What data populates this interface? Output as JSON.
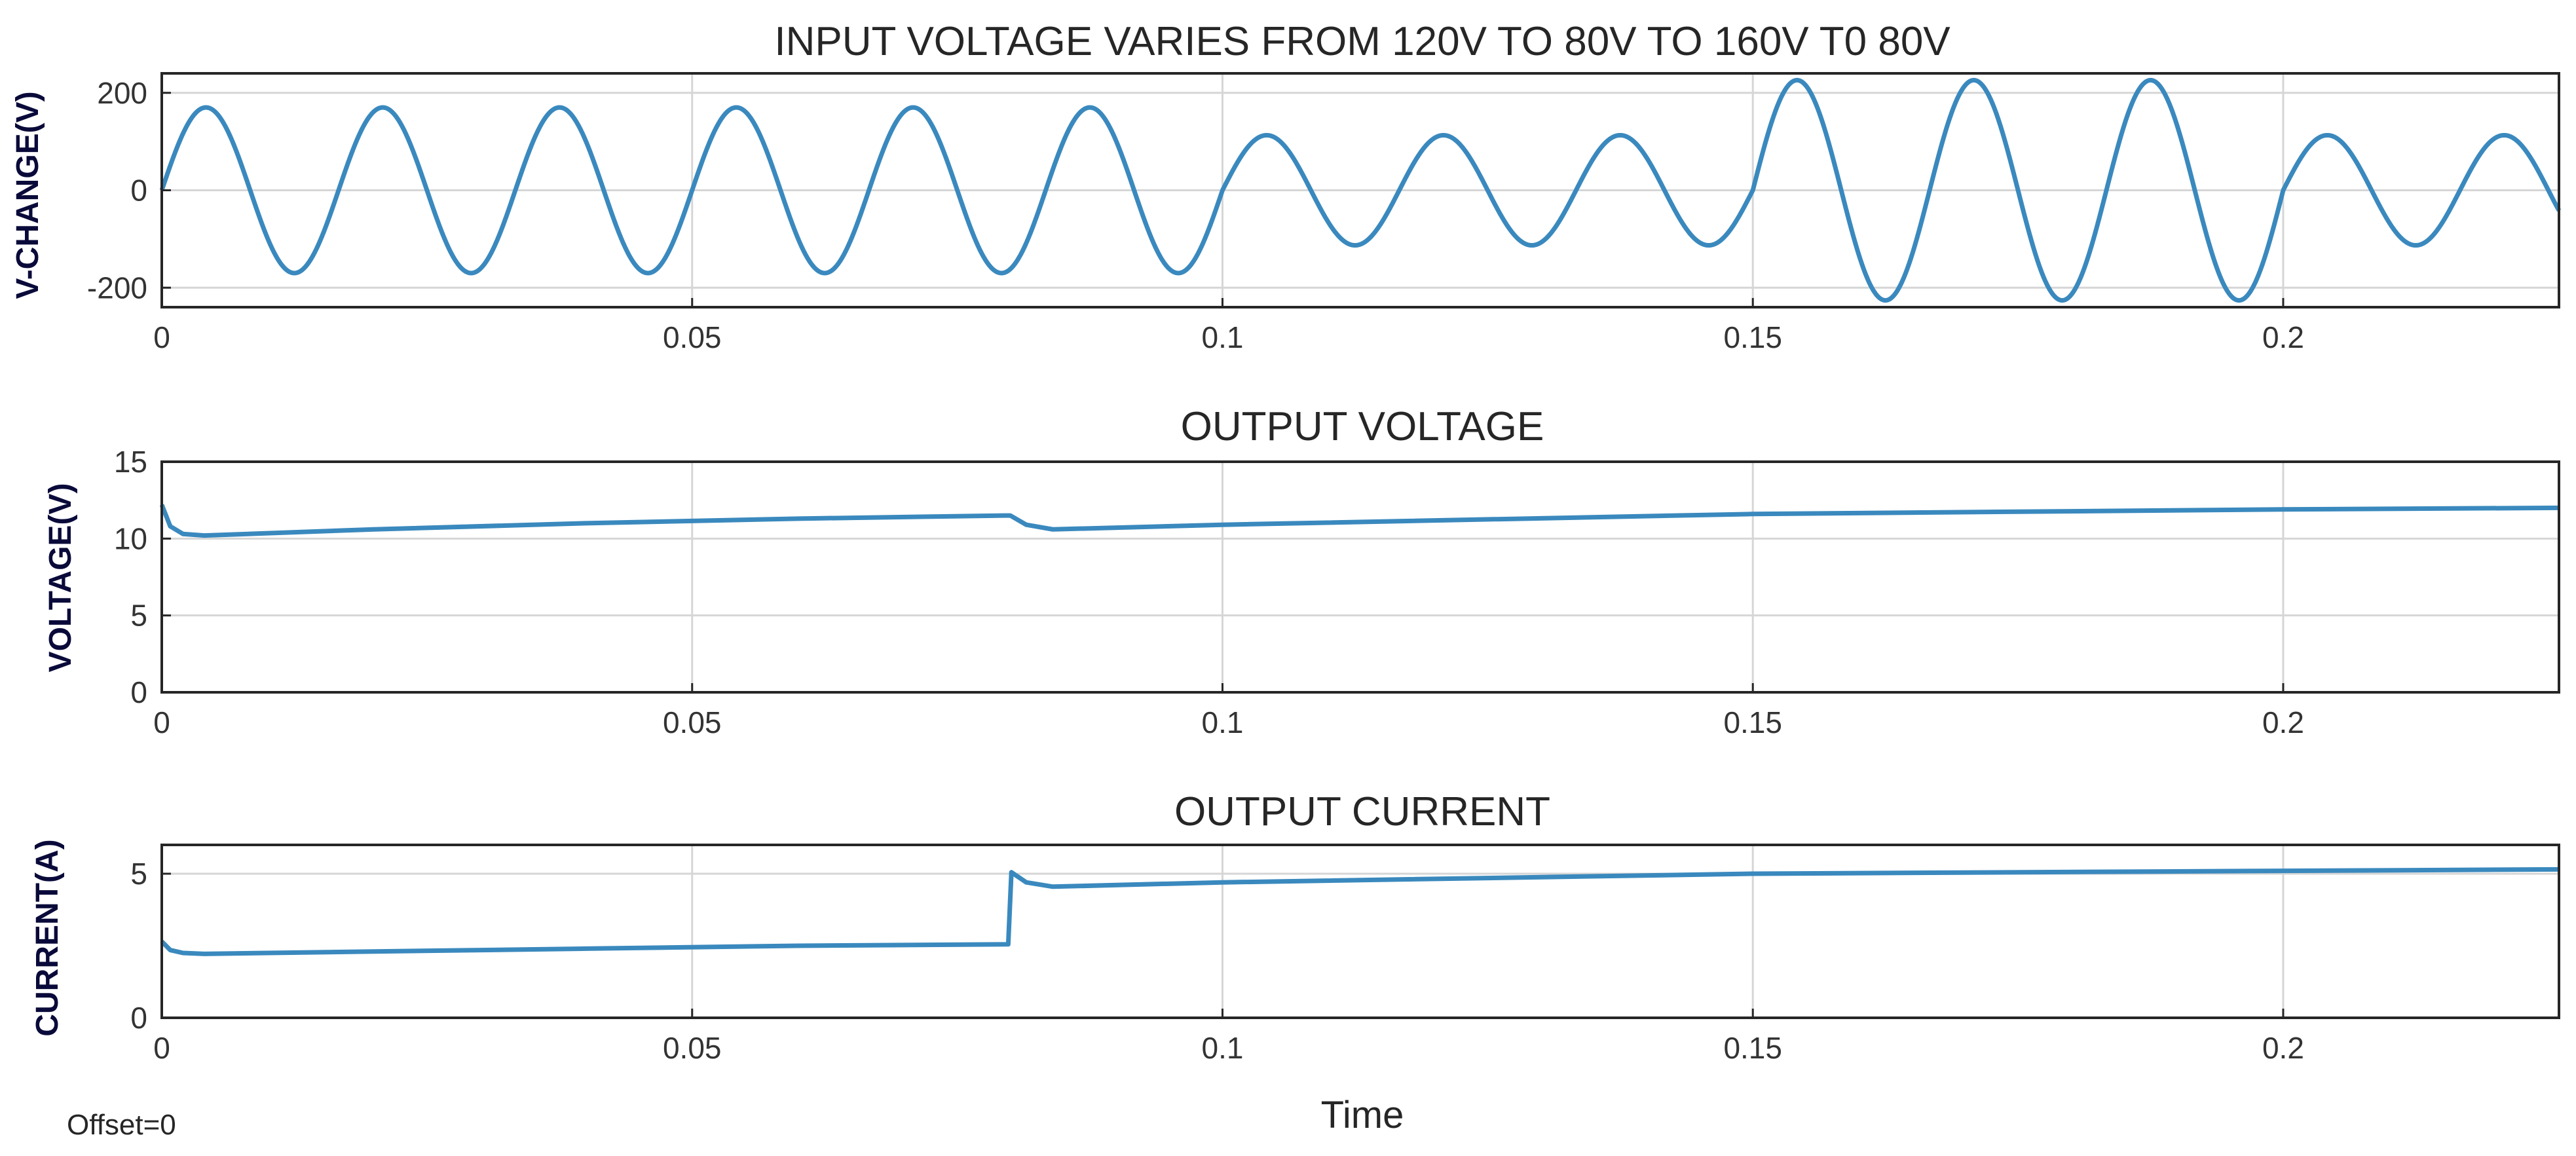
{
  "figure": {
    "xlabel": "Time",
    "offset_label": "Offset=0",
    "colors": {
      "line": "#3a89be",
      "axes": "#262626",
      "grid": "#d6d6d6",
      "background": "#ffffff"
    }
  },
  "chart_data": [
    {
      "type": "line",
      "title": "INPUT VOLTAGE VARIES FROM 120V TO 80V TO 160V T0 80V",
      "ylabel": "V-CHANGE(V)",
      "xlim": [
        0,
        0.226
      ],
      "ylim": [
        -240,
        240
      ],
      "xticks": [
        0,
        0.05,
        0.1,
        0.15,
        0.2
      ],
      "xtick_labels": [
        "0",
        "0.05",
        "0.1",
        "0.15",
        "0.2"
      ],
      "yticks": [
        -200,
        0,
        200
      ],
      "ytick_labels": [
        "-200",
        "0",
        "200"
      ],
      "grid": true,
      "series": [
        {
          "kind": "piecewise-sinusoid",
          "frequency_hz": 60,
          "segments": [
            {
              "t_start": 0,
              "t_end": 0.1,
              "amplitude": 170
            },
            {
              "t_start": 0.1,
              "t_end": 0.15,
              "amplitude": 113
            },
            {
              "t_start": 0.15,
              "t_end": 0.2,
              "amplitude": 226
            },
            {
              "t_start": 0.2,
              "t_end": 0.226,
              "amplitude": 113
            }
          ]
        }
      ]
    },
    {
      "type": "line",
      "title": "OUTPUT VOLTAGE",
      "ylabel": "VOLTAGE(V)",
      "xlim": [
        0,
        0.226
      ],
      "ylim": [
        0,
        15
      ],
      "xticks": [
        0,
        0.05,
        0.1,
        0.15,
        0.2
      ],
      "xtick_labels": [
        "0",
        "0.05",
        "0.1",
        "0.15",
        "0.2"
      ],
      "yticks": [
        0,
        5,
        10,
        15
      ],
      "ytick_labels": [
        "0",
        "5",
        "10",
        "15"
      ],
      "grid": true,
      "series": [
        {
          "x": [
            0,
            0.0008,
            0.002,
            0.004,
            0.02,
            0.04,
            0.06,
            0.0795,
            0.08,
            0.0815,
            0.084,
            0.1,
            0.15,
            0.2,
            0.226
          ],
          "y": [
            12.2,
            10.8,
            10.3,
            10.2,
            10.6,
            11.0,
            11.3,
            11.5,
            11.5,
            10.9,
            10.6,
            10.9,
            11.6,
            11.9,
            12.0
          ]
        }
      ]
    },
    {
      "type": "line",
      "title": "OUTPUT CURRENT",
      "ylabel": "CURRENT(A)",
      "xlim": [
        0,
        0.226
      ],
      "ylim": [
        0,
        6
      ],
      "xticks": [
        0,
        0.05,
        0.1,
        0.15,
        0.2
      ],
      "xtick_labels": [
        "0",
        "0.05",
        "0.1",
        "0.15",
        "0.2"
      ],
      "yticks": [
        0,
        5
      ],
      "ytick_labels": [
        "0",
        "5"
      ],
      "grid": true,
      "series": [
        {
          "x": [
            0,
            0.0008,
            0.002,
            0.004,
            0.02,
            0.04,
            0.06,
            0.0798,
            0.0801,
            0.0815,
            0.084,
            0.1,
            0.15,
            0.2,
            0.226
          ],
          "y": [
            2.65,
            2.35,
            2.25,
            2.22,
            2.3,
            2.4,
            2.5,
            2.55,
            5.05,
            4.7,
            4.55,
            4.7,
            5.0,
            5.1,
            5.15
          ]
        }
      ]
    }
  ]
}
